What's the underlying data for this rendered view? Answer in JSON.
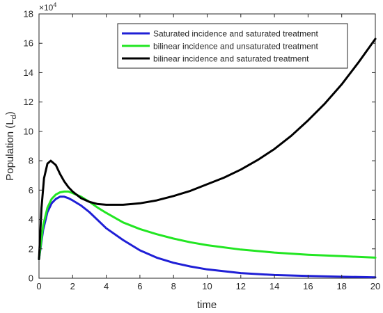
{
  "chart_data": {
    "type": "line",
    "xlabel": "time",
    "ylabel": "Population (L",
    "ylabel_sub": "d",
    "ylabel_close": ")",
    "y_exponent_base": "×10",
    "y_exponent_power": "4",
    "xlim": [
      0,
      20
    ],
    "ylim": [
      0,
      18
    ],
    "xticks": [
      0,
      2,
      4,
      6,
      8,
      10,
      12,
      14,
      16,
      18,
      20
    ],
    "yticks": [
      0,
      2,
      4,
      6,
      8,
      10,
      12,
      14,
      16,
      18
    ],
    "grid": false,
    "legend_position": "top-right",
    "series": [
      {
        "name": "Saturated incidence and saturated treatment",
        "color": "#1f1fd6",
        "x": [
          0,
          0.25,
          0.5,
          0.75,
          1.0,
          1.25,
          1.5,
          1.75,
          2.0,
          2.5,
          3.0,
          3.5,
          4.0,
          5.0,
          6.0,
          7.0,
          8.0,
          9.0,
          10.0,
          12.0,
          14.0,
          16.0,
          18.0,
          20.0
        ],
        "y": [
          1.3,
          3.3,
          4.5,
          5.1,
          5.4,
          5.55,
          5.55,
          5.45,
          5.3,
          4.95,
          4.5,
          3.95,
          3.4,
          2.6,
          1.9,
          1.4,
          1.05,
          0.8,
          0.6,
          0.35,
          0.22,
          0.15,
          0.1,
          0.06
        ]
      },
      {
        "name": "bilinear incidence and unsaturated treatment",
        "color": "#22e622",
        "x": [
          0,
          0.25,
          0.5,
          0.75,
          1.0,
          1.25,
          1.5,
          1.75,
          2.0,
          2.5,
          3.0,
          3.5,
          4.0,
          5.0,
          6.0,
          7.0,
          8.0,
          9.0,
          10.0,
          12.0,
          14.0,
          16.0,
          18.0,
          20.0
        ],
        "y": [
          1.3,
          3.6,
          4.8,
          5.4,
          5.7,
          5.85,
          5.9,
          5.9,
          5.8,
          5.55,
          5.2,
          4.8,
          4.45,
          3.8,
          3.35,
          3.0,
          2.7,
          2.45,
          2.25,
          1.95,
          1.75,
          1.6,
          1.5,
          1.4
        ]
      },
      {
        "name": "bilinear incidence and saturated treatment",
        "color": "#000000",
        "x": [
          0,
          0.15,
          0.3,
          0.5,
          0.7,
          1.0,
          1.25,
          1.5,
          1.75,
          2.0,
          2.5,
          3.0,
          3.5,
          4.0,
          4.5,
          5.0,
          5.5,
          6.0,
          7.0,
          8.0,
          9.0,
          10.0,
          11.0,
          12.0,
          13.0,
          14.0,
          15.0,
          16.0,
          17.0,
          18.0,
          19.0,
          20.0
        ],
        "y": [
          1.3,
          4.8,
          6.8,
          7.8,
          8.0,
          7.7,
          7.1,
          6.6,
          6.2,
          5.9,
          5.45,
          5.2,
          5.05,
          5.0,
          5.0,
          5.0,
          5.05,
          5.1,
          5.3,
          5.6,
          5.95,
          6.4,
          6.85,
          7.4,
          8.05,
          8.8,
          9.7,
          10.75,
          11.9,
          13.2,
          14.7,
          16.3
        ]
      }
    ]
  }
}
